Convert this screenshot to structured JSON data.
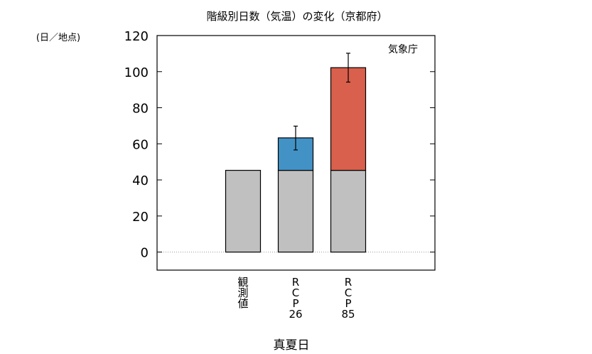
{
  "chart_data": {
    "type": "bar",
    "stacked": true,
    "title": "階級別日数（気温）の変化（京都府）",
    "ylabel": "(日／地点)",
    "xlabel": "真夏日",
    "annotation": "気象庁",
    "ylim": [
      -10,
      120
    ],
    "yticks": [
      "120",
      "100",
      "80",
      "60",
      "40",
      "20",
      "0"
    ],
    "ytick_values": [
      120,
      100,
      80,
      60,
      40,
      20,
      0
    ],
    "zero_line": "dotted",
    "grid": false,
    "categories": [
      [
        "観",
        "測",
        "値"
      ],
      [
        "R",
        "C",
        "P",
        "26"
      ],
      [
        "R",
        "C",
        "P",
        "85"
      ]
    ],
    "series": [
      {
        "name": "",
        "color": "#c0c0c0",
        "values": [
          45.3,
          45.3,
          45.3
        ]
      },
      {
        "name": "",
        "color": "#4292c6",
        "values": [
          0,
          18.0,
          0
        ]
      },
      {
        "name": "",
        "color": "#d9604c",
        "values": [
          0,
          0,
          56.9
        ]
      }
    ],
    "error_bars": [
      null,
      {
        "center": 63.3,
        "low": 56.6,
        "high": 69.8
      },
      {
        "center": 102.2,
        "low": 94.2,
        "high": 110.2
      }
    ]
  }
}
